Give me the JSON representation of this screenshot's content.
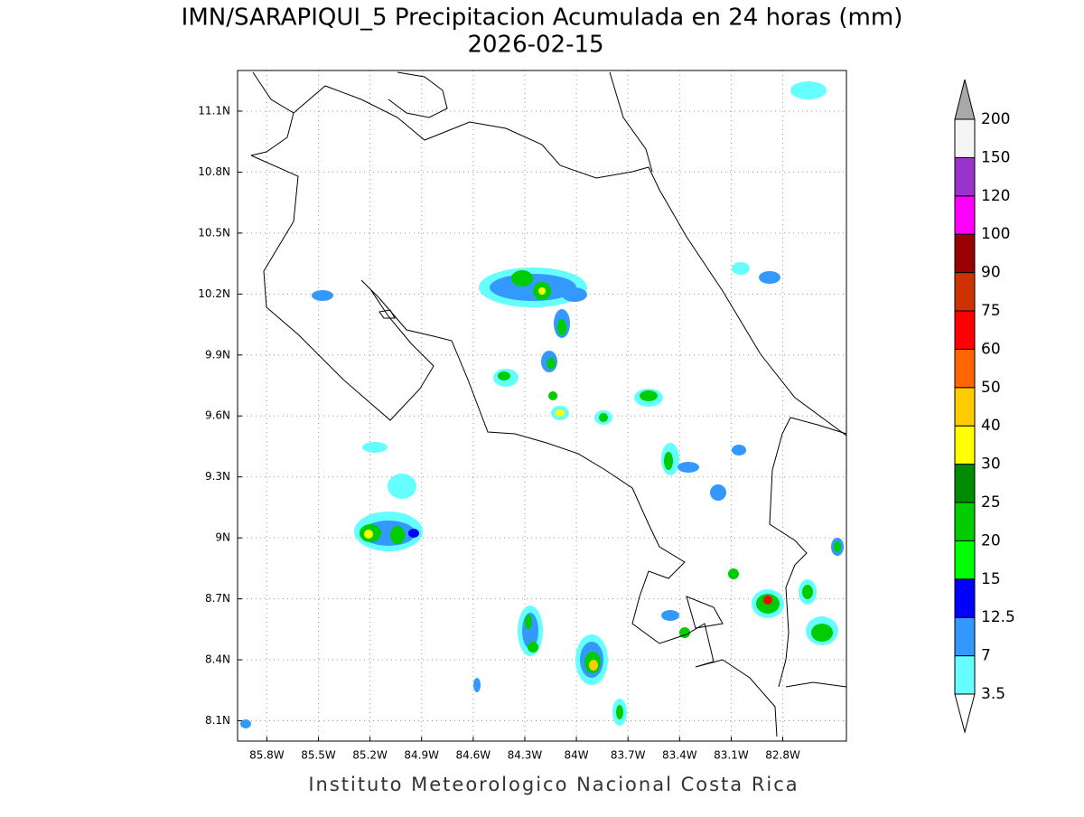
{
  "title": "IMN/SARAPIQUI_5 Precipitacion Acumulada en 24 horas (mm)",
  "subtitle": "2026-02-15",
  "footer": "Instituto Meteorologico Nacional Costa Rica",
  "map": {
    "lonlim": [
      -85.97,
      -82.43
    ],
    "latlim": [
      8.0,
      11.3
    ],
    "lonticks": [
      {
        "value": -85.8,
        "label": "85.8W"
      },
      {
        "value": -85.5,
        "label": "85.5W"
      },
      {
        "value": -85.2,
        "label": "85.2W"
      },
      {
        "value": -84.9,
        "label": "84.9W"
      },
      {
        "value": -84.6,
        "label": "84.6W"
      },
      {
        "value": -84.3,
        "label": "84.3W"
      },
      {
        "value": -84.0,
        "label": "84W"
      },
      {
        "value": -83.7,
        "label": "83.7W"
      },
      {
        "value": -83.4,
        "label": "83.4W"
      },
      {
        "value": -83.1,
        "label": "83.1W"
      },
      {
        "value": -82.8,
        "label": "82.8W"
      }
    ],
    "latticks": [
      {
        "value": 8.1,
        "label": "8.1N"
      },
      {
        "value": 8.4,
        "label": "8.4N"
      },
      {
        "value": 8.7,
        "label": "8.7N"
      },
      {
        "value": 9.0,
        "label": "9N"
      },
      {
        "value": 9.3,
        "label": "9.3N"
      },
      {
        "value": 9.6,
        "label": "9.6N"
      },
      {
        "value": 9.9,
        "label": "9.9N"
      },
      {
        "value": 10.2,
        "label": "10.2N"
      },
      {
        "value": 10.5,
        "label": "10.5N"
      },
      {
        "value": 10.8,
        "label": "10.8N"
      },
      {
        "value": 11.1,
        "label": "11.1N"
      }
    ],
    "grid": true
  },
  "colorbar": {
    "levels": [
      3.5,
      7,
      12.5,
      15,
      20,
      25,
      30,
      40,
      50,
      60,
      75,
      90,
      100,
      120,
      150,
      200
    ],
    "colors": [
      "#66ffff",
      "#3399ff",
      "#0000ff",
      "#00ff00",
      "#00cc00",
      "#008c00",
      "#ffff00",
      "#ffcc00",
      "#ff6600",
      "#ff0000",
      "#cc3300",
      "#990000",
      "#ff00ff",
      "#9933cc",
      "#f5f5f5"
    ],
    "under_color": "#ffffff",
    "over_color": "#a8a8a8"
  }
}
